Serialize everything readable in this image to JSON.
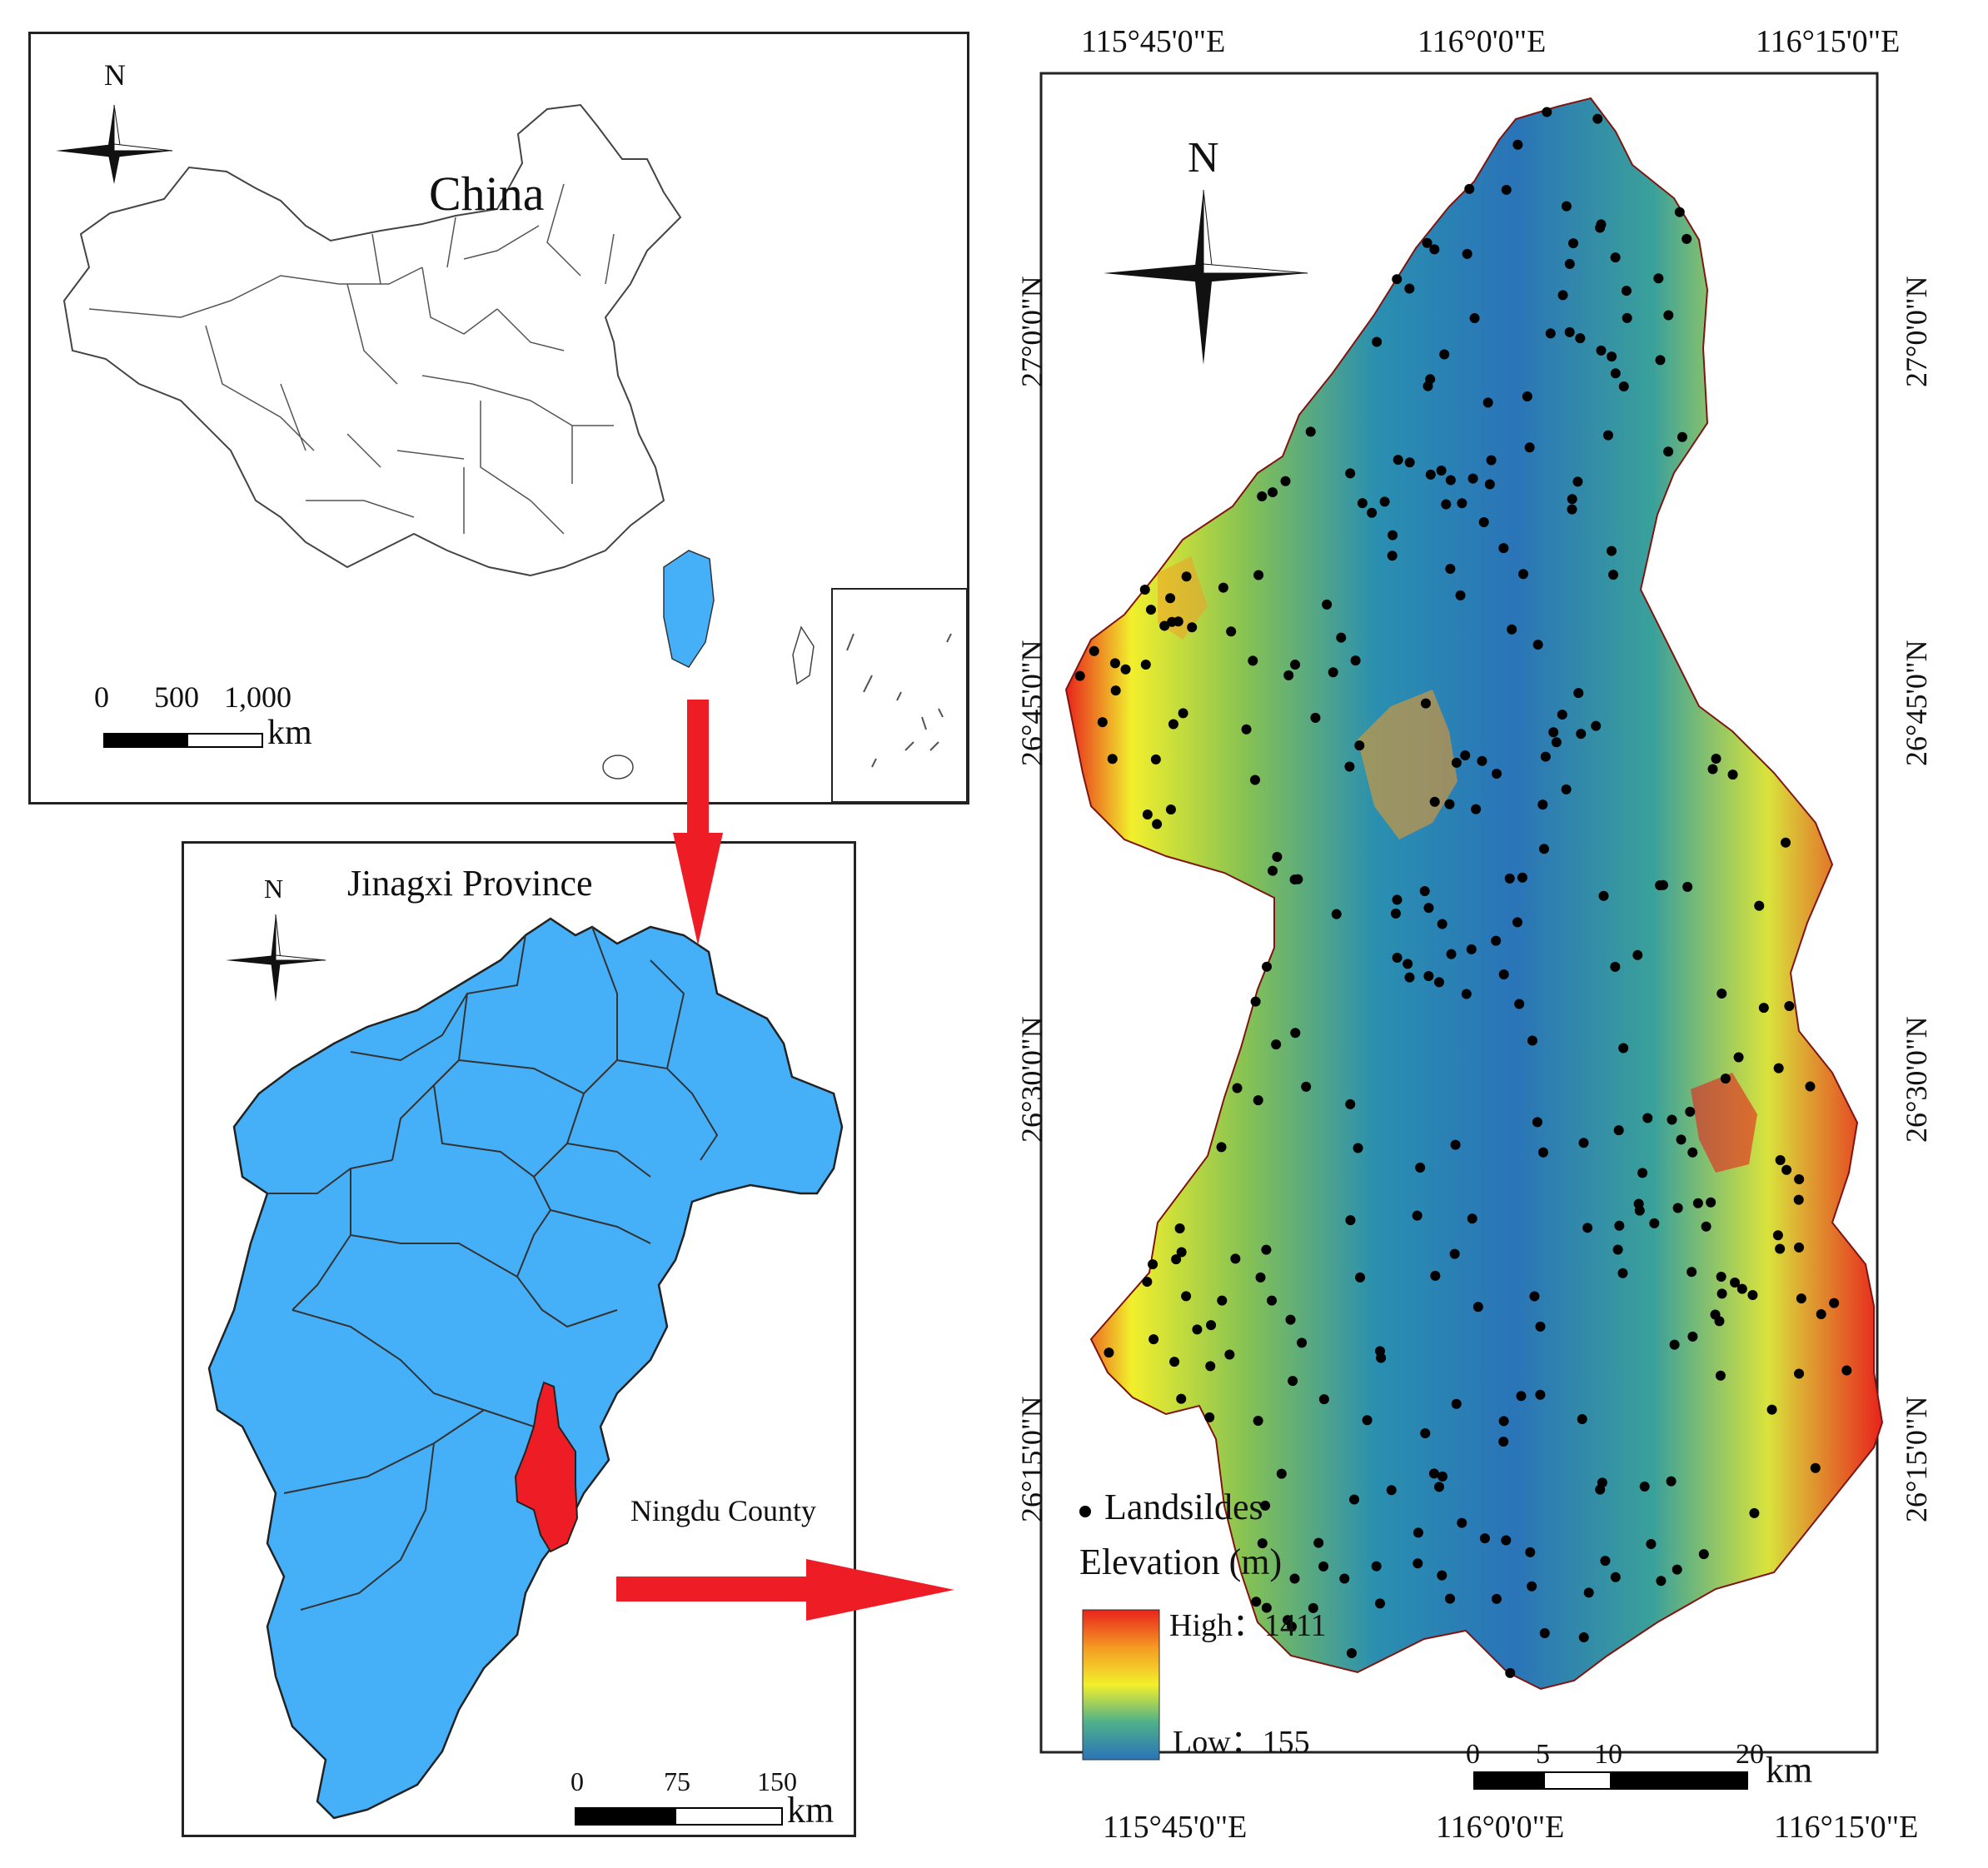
{
  "china_panel": {
    "title": "China",
    "north": "N",
    "scale": {
      "ticks": [
        "0",
        "500",
        "1,000"
      ],
      "unit": "km"
    }
  },
  "province_panel": {
    "title": "Jinagxi Province",
    "north": "N",
    "county_label": "Ningdu County",
    "scale": {
      "ticks": [
        "0",
        "75",
        "150"
      ],
      "unit": "km"
    }
  },
  "ningdu_map": {
    "north": "N",
    "top_lon": [
      "115°45'0\"E",
      "116°0'0\"E",
      "116°15'0\"E"
    ],
    "bottom_lon": [
      "115°45'0\"E",
      "116°0'0\"E",
      "116°15'0\"E"
    ],
    "lat": [
      "27°0'0\"N",
      "26°45'0\"N",
      "26°30'0\"N",
      "26°15'0\"N"
    ],
    "legend": {
      "landslides": "Landsildes",
      "elevation_title": "Elevation (m)",
      "high": "High：1411",
      "low": "Low：155"
    },
    "scale": {
      "ticks": [
        "0",
        "5",
        "10",
        "20"
      ],
      "unit": "km"
    }
  },
  "colors": {
    "province_fill": "#45b0f8",
    "county_fill": "#ee1c24",
    "arrow": "#ee1c24",
    "elev_low": "#2a74b8",
    "elev_mid": "#f2ef2c",
    "elev_high": "#e8231c"
  }
}
